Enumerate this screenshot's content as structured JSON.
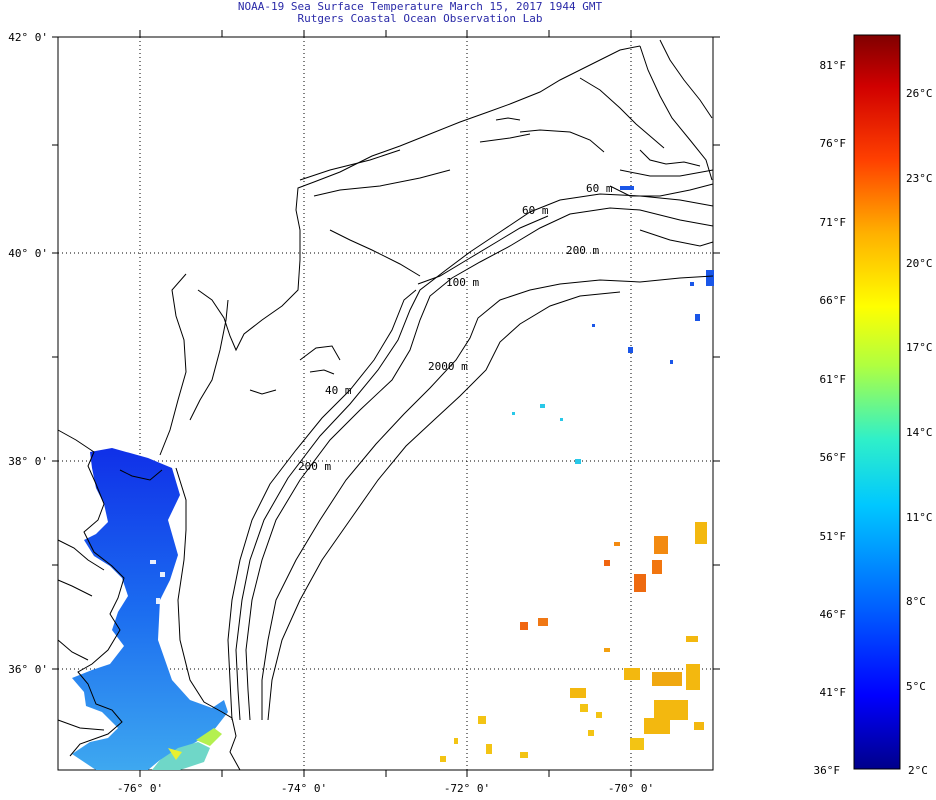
{
  "header": {
    "title": "NOAA-19 Sea Surface Temperature March 15, 2017 1944 GMT",
    "subtitle": "Rutgers Coastal Ocean Observation Lab"
  },
  "map": {
    "lat_labels": [
      "42° 0'",
      "40° 0'",
      "38° 0'",
      "36° 0'"
    ],
    "lon_labels": [
      "-76° 0'",
      "-74° 0'",
      "-72° 0'",
      "-70° 0'"
    ],
    "lat_range": [
      35,
      42.2
    ],
    "lon_range": [
      -77,
      -69
    ],
    "grid": "dotted",
    "contour_labels": [
      "60 m",
      "60 m",
      "200 m",
      "100 m",
      "2000 m",
      "40 m",
      "200 m"
    ],
    "colors": {
      "land": "#ffffff",
      "coastline": "#000000"
    }
  },
  "colorbar": {
    "fahrenheit_labels": [
      "81°F",
      "76°F",
      "71°F",
      "66°F",
      "61°F",
      "56°F",
      "51°F",
      "46°F",
      "41°F",
      "36°F"
    ],
    "celsius_labels": [
      "26°C",
      "23°C",
      "20°C",
      "17°C",
      "14°C",
      "11°C",
      "8°C",
      "5°C",
      "2°C"
    ],
    "range_c": [
      2,
      28
    ],
    "colors": [
      "#00008a",
      "#0000ff",
      "#0060ff",
      "#00c8ff",
      "#30f0c8",
      "#b0ff40",
      "#ffff00",
      "#ffb000",
      "#ff4000",
      "#d00000",
      "#800000"
    ]
  }
}
